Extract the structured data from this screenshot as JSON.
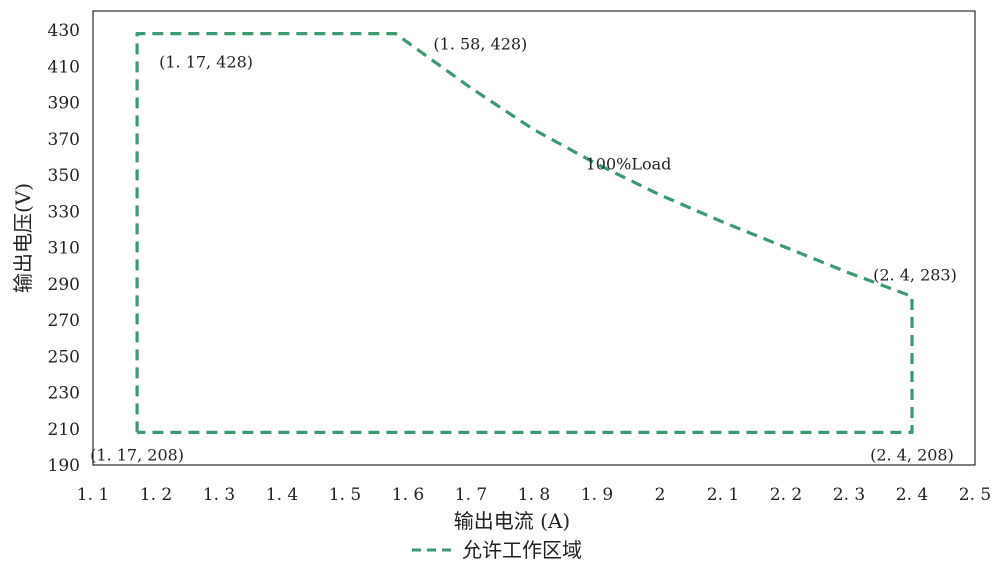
{
  "chart_data": {
    "type": "line",
    "title": "",
    "xlabel": "输出电流 (A)",
    "ylabel": "输出电压(V)",
    "xlim": [
      1.1,
      2.5
    ],
    "ylim": [
      190,
      430
    ],
    "xticks": [
      1.1,
      1.2,
      1.3,
      1.4,
      1.5,
      1.6,
      1.7,
      1.8,
      1.9,
      2,
      2.1,
      2.2,
      2.3,
      2.4,
      2.5
    ],
    "xtick_labels": [
      "1. 1",
      "1. 2",
      "1. 3",
      "1. 4",
      "1. 5",
      "1. 6",
      "1. 7",
      "1. 8",
      "1. 9",
      "2",
      "2. 1",
      "2. 2",
      "2. 3",
      "2. 4",
      "2. 5"
    ],
    "yticks": [
      190,
      210,
      230,
      250,
      270,
      290,
      310,
      330,
      350,
      370,
      390,
      410,
      430
    ],
    "ytick_labels": [
      "190",
      "210",
      "230",
      "250",
      "270",
      "290",
      "310",
      "330",
      "350",
      "370",
      "390",
      "410",
      "430"
    ],
    "grid": false,
    "legend_position": "bottom",
    "series": [
      {
        "name": "允许工作区域",
        "color": "#3d9970",
        "line_style": "dashed",
        "x": [
          1.17,
          1.17,
          1.58,
          1.7,
          1.8,
          1.9,
          2.0,
          2.1,
          2.2,
          2.3,
          2.4,
          2.4,
          1.17
        ],
        "y": [
          208,
          428,
          428,
          398,
          375,
          356,
          339,
          324,
          310,
          296,
          283,
          208,
          208
        ]
      }
    ],
    "annotations": [
      {
        "text": "(1. 17, 428)",
        "x": 1.17,
        "y": 428,
        "anchor": "below-right"
      },
      {
        "text": "(1. 58, 428)",
        "x": 1.58,
        "y": 428,
        "anchor": "right"
      },
      {
        "text": "100%Load",
        "x": 1.95,
        "y": 353,
        "anchor": "center"
      },
      {
        "text": "(2. 4, 283)",
        "x": 2.4,
        "y": 283,
        "anchor": "above"
      },
      {
        "text": "(1. 17, 208)",
        "x": 1.17,
        "y": 208,
        "anchor": "below"
      },
      {
        "text": "(2. 4, 208)",
        "x": 2.4,
        "y": 208,
        "anchor": "below"
      }
    ]
  }
}
